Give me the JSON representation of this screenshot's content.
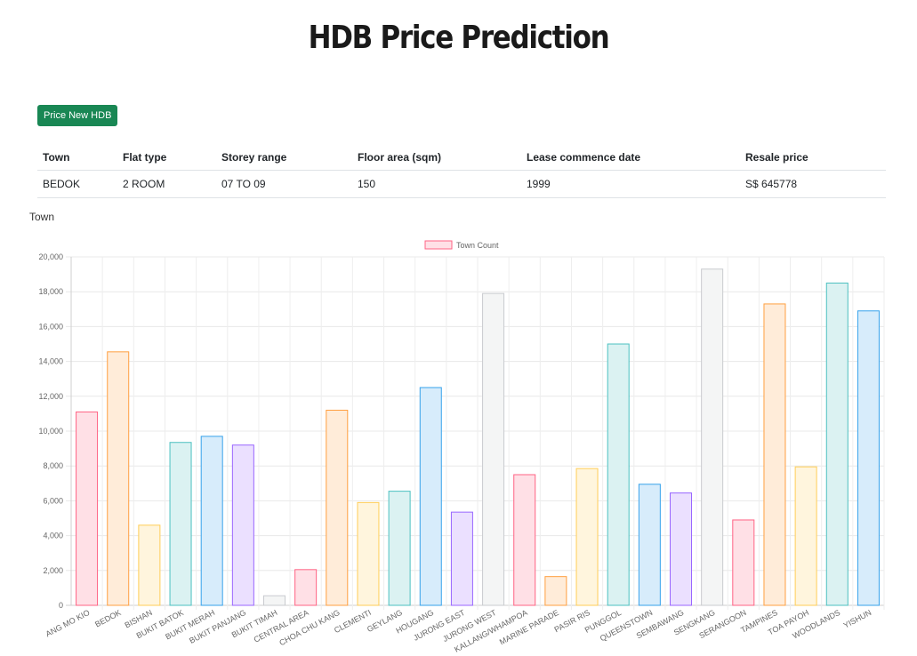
{
  "header": {
    "title": "HDB Price Prediction"
  },
  "actions": {
    "price_button_label": "Price New HDB"
  },
  "table": {
    "headers": [
      "Town",
      "Flat type",
      "Storey range",
      "Floor area (sqm)",
      "Lease commence date",
      "Resale price"
    ],
    "rows": [
      [
        "BEDOK",
        "2 ROOM",
        "07 TO 09",
        "150",
        "1999",
        "S$ 645778"
      ]
    ]
  },
  "section": {
    "label": "Town"
  },
  "chart_data": {
    "type": "bar",
    "title": "",
    "xlabel": "",
    "ylabel": "",
    "legend": {
      "position": "top",
      "labels": [
        "Town Count"
      ]
    },
    "grid": true,
    "ylim": [
      0,
      20000
    ],
    "yticks": [
      "0",
      "2,000",
      "4,000",
      "6,000",
      "8,000",
      "10,000",
      "12,000",
      "14,000",
      "16,000",
      "18,000",
      "20,000"
    ],
    "categories": [
      "ANG MO KIO",
      "BEDOK",
      "BISHAN",
      "BUKIT BATOK",
      "BUKIT MERAH",
      "BUKIT PANJANG",
      "BUKIT TIMAH",
      "CENTRAL AREA",
      "CHOA CHU KANG",
      "CLEMENTI",
      "GEYLANG",
      "HOUGANG",
      "JURONG EAST",
      "JURONG WEST",
      "KALLANG/WHAMPOA",
      "MARINE PARADE",
      "PASIR RIS",
      "PUNGGOL",
      "QUEENSTOWN",
      "SEMBAWANG",
      "SENGKANG",
      "SERANGOON",
      "TAMPINES",
      "TOA PAYOH",
      "WOODLANDS",
      "YISHUN"
    ],
    "series": [
      {
        "name": "Town Count",
        "values": [
          11100,
          14550,
          4600,
          9350,
          9700,
          9200,
          550,
          2050,
          11200,
          5900,
          6550,
          12500,
          5350,
          17900,
          7500,
          1650,
          7850,
          15000,
          6950,
          6450,
          19300,
          4900,
          17300,
          7950,
          18500,
          16900
        ]
      }
    ],
    "colors": {
      "fill": [
        "#ffe0e6",
        "#ffecd9",
        "#fff5dd",
        "#dbf2f2",
        "#d7ecfb",
        "#ebe0ff",
        "#f4f5f5"
      ],
      "stroke": [
        "#ff6384",
        "#ff9f40",
        "#ffcd56",
        "#4bc0c0",
        "#36a2eb",
        "#9966ff",
        "#c9cbcf"
      ],
      "button": "#198754"
    }
  }
}
